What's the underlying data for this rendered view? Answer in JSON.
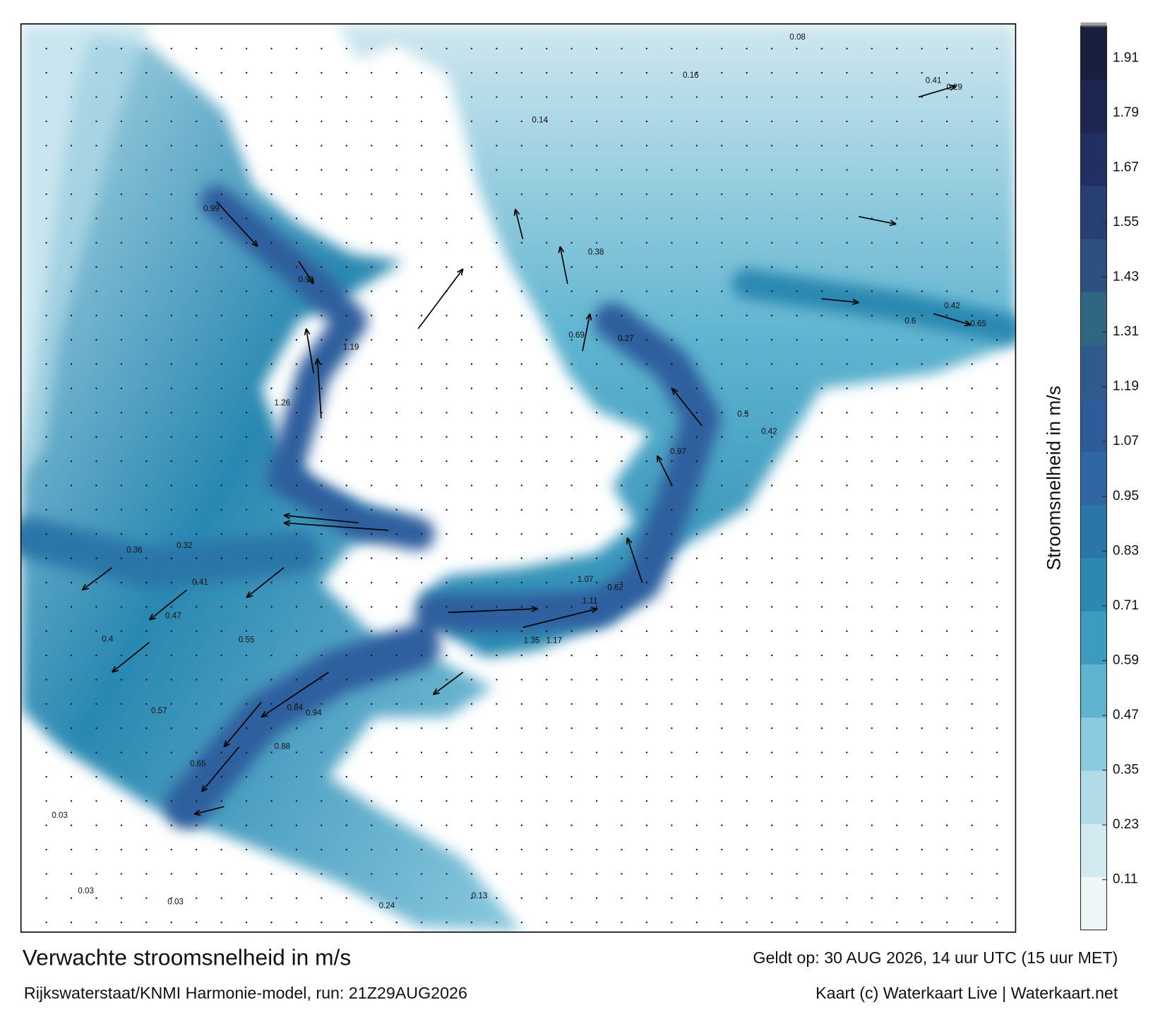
{
  "header": {
    "title": "Verwachte stroomsnelheid in m/s",
    "valid": "Geldt op: 30 AUG 2026, 14 uur UTC (15 uur MET)"
  },
  "footer": {
    "source": "Rijkswaterstaat/KNMI Harmonie-model, run: 21Z29AUG2026",
    "credit": "Kaart (c) Waterkaart Live | Waterkaart.net"
  },
  "colorbar": {
    "label": "Stroomsnelheid in m/s",
    "ylim": [
      0,
      1.98
    ],
    "yticks": [
      0.11,
      0.23,
      0.35,
      0.47,
      0.59,
      0.71,
      0.83,
      0.95,
      1.07,
      1.19,
      1.31,
      1.43,
      1.55,
      1.67,
      1.79,
      1.91
    ],
    "colors": [
      "#eef6f8",
      "#d3eaf1",
      "#b2dbe8",
      "#8bcadf",
      "#5fb4d0",
      "#3b9cc0",
      "#2a88b1",
      "#2b76a9",
      "#2f66a3",
      "#2f5b9b",
      "#2e5a8c",
      "#2f6782",
      "#2c5080",
      "#283f73",
      "#222f63",
      "#1d2551",
      "#19203f"
    ]
  },
  "map_labels": [
    1.26,
    0.99,
    1.19,
    0.91,
    1.35,
    1.17,
    1.11,
    1.07,
    0.97,
    0.94,
    0.69,
    0.62,
    0.84,
    0.88,
    0.65,
    0.57,
    0.47,
    0.4,
    0.36,
    0.32,
    0.41,
    0.55,
    0.6,
    0.65,
    0.42,
    0.29,
    0.41,
    0.16,
    0.08,
    0.14,
    0.38,
    0.27,
    0.5,
    0.42,
    0.03,
    0.03,
    0.03,
    0.24,
    0.13
  ]
}
